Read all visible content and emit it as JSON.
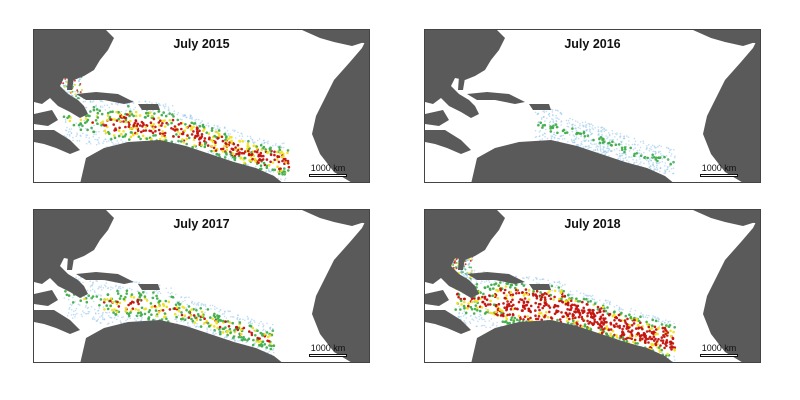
{
  "colors": {
    "land": "#5a5a5a",
    "ocean": "#ffffff",
    "low_density": "#8fc3ea",
    "mid_density": "#3fae4a",
    "high_density": "#f0e020",
    "max_density": "#c4120c"
  },
  "panels": [
    {
      "title": "July 2015",
      "scale_label": "1000 km",
      "density": 0.75
    },
    {
      "title": "July 2016",
      "scale_label": "1000 km",
      "density": 0.3
    },
    {
      "title": "July 2017",
      "scale_label": "1000 km",
      "density": 0.55
    },
    {
      "title": "July 2018",
      "scale_label": "1000 km",
      "density": 1.0
    }
  ]
}
